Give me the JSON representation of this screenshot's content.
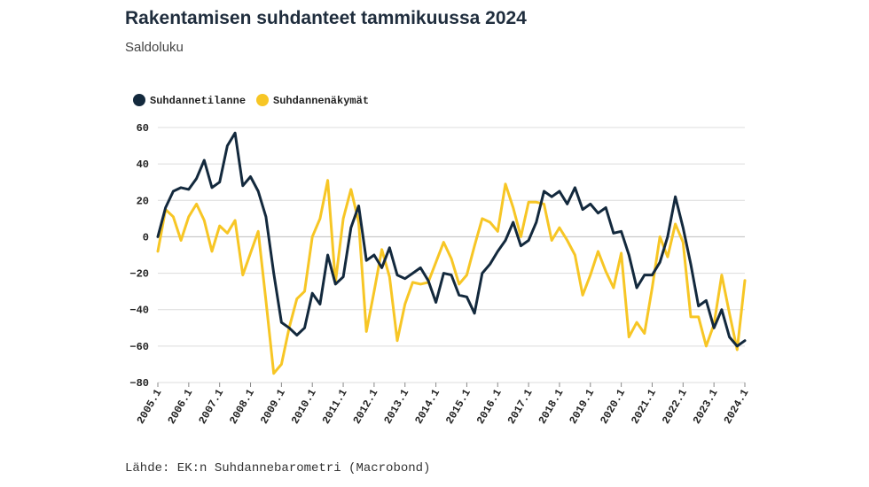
{
  "chart_data": {
    "type": "line",
    "title": "Rakentamisen suhdanteet tammikuussa 2024",
    "subtitle": "Saldoluku",
    "source": "Lähde: EK:n Suhdannebarometri (Macrobond)",
    "ylim": [
      -80,
      60
    ],
    "yticks": [
      60,
      40,
      20,
      0,
      -20,
      -40,
      -60,
      -80
    ],
    "xticks": [
      "2005.1",
      "2006.1",
      "2007.1",
      "2008.1",
      "2009.1",
      "2010.1",
      "2011.1",
      "2012.1",
      "2013.1",
      "2014.1",
      "2015.1",
      "2016.1",
      "2017.1",
      "2018.1",
      "2019.1",
      "2020.1",
      "2021.1",
      "2022.1",
      "2023.1",
      "2024.1"
    ],
    "x_start": 2005.0,
    "x_step": 0.25,
    "grid": "horizontal",
    "legend_position": "top-left",
    "series": [
      {
        "name": "Suhdannetilanne",
        "color": "#13293d",
        "values": [
          0,
          16,
          25,
          27,
          26,
          32,
          42,
          27,
          30,
          50,
          57,
          28,
          33,
          25,
          11,
          -20,
          -47,
          -50,
          -54,
          -50,
          -31,
          -37,
          -10,
          -26,
          -22,
          5,
          17,
          -13,
          -10,
          -17,
          -6,
          -21,
          -23,
          -20,
          -17,
          -24,
          -36,
          -20,
          -21,
          -32,
          -33,
          -42,
          -20,
          -15,
          -8,
          -2,
          8,
          -5,
          -2,
          8,
          25,
          22,
          25,
          18,
          27,
          15,
          18,
          13,
          16,
          2,
          3,
          -10,
          -28,
          -21,
          -21,
          -14,
          0,
          22,
          5,
          -15,
          -38,
          -35,
          -50,
          -40,
          -55,
          -60,
          -57
        ]
      },
      {
        "name": "Suhdannenäkymät",
        "color": "#f7c625",
        "values": [
          -8,
          15,
          11,
          -2,
          11,
          18,
          9,
          -8,
          6,
          2,
          9,
          -21,
          -9,
          3,
          -35,
          -75,
          -70,
          -50,
          -34,
          -30,
          0,
          10,
          31,
          -25,
          10,
          26,
          8,
          -52,
          -30,
          -7,
          -22,
          -57,
          -37,
          -25,
          -26,
          -25,
          -14,
          -3,
          -12,
          -26,
          -21,
          -5,
          10,
          8,
          3,
          29,
          16,
          0,
          19,
          19,
          18,
          -2,
          5,
          -2,
          -10,
          -32,
          -21,
          -8,
          -19,
          -28,
          -9,
          -55,
          -47,
          -53,
          -28,
          0,
          -11,
          7,
          -3,
          -44,
          -44,
          -60,
          -48,
          -21,
          -42,
          -62,
          -24
        ]
      }
    ]
  }
}
